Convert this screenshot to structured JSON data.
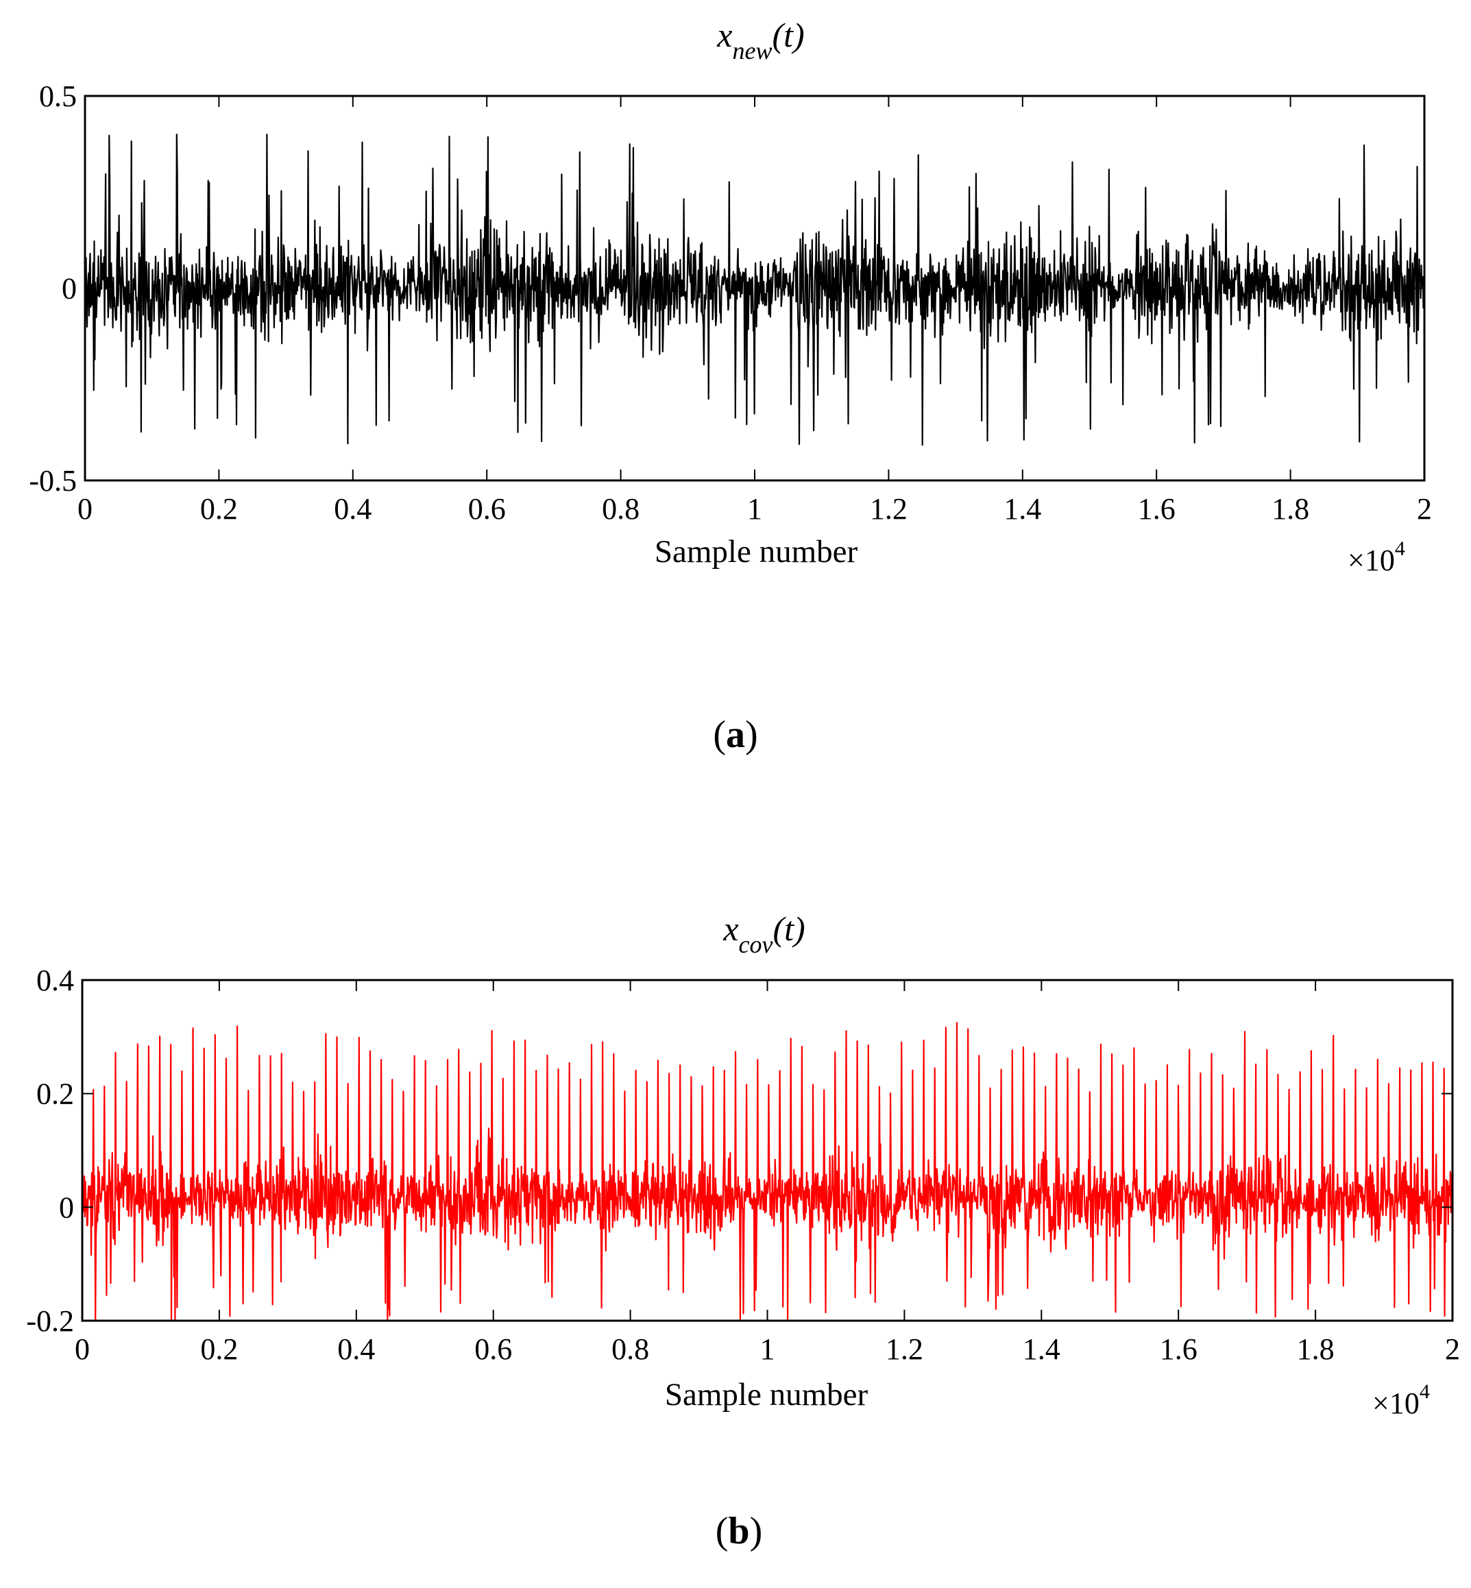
{
  "chart_data": [
    {
      "type": "line",
      "title_base": "x",
      "title_sub": "new",
      "title_tail": "(t)",
      "xlabel": "Sample number",
      "x_multiplier": "×10",
      "x_multiplier_exp": "4",
      "xlim": [
        0,
        20000
      ],
      "ylim": [
        -0.5,
        0.5
      ],
      "xticks": [
        0,
        0.2,
        0.4,
        0.6,
        0.8,
        1,
        1.2,
        1.4,
        1.6,
        1.8,
        2
      ],
      "xtick_labels": [
        "0",
        "0.2",
        "0.4",
        "0.6",
        "0.8",
        "1",
        "1.2",
        "1.4",
        "1.6",
        "1.8",
        "2"
      ],
      "yticks": [
        -0.5,
        0,
        0.5
      ],
      "ytick_labels": [
        "-0.5",
        "0",
        "0.5"
      ],
      "color": "#000000",
      "panel_label_open": "(",
      "panel_label_letter": "a",
      "panel_label_close": ")",
      "series": [
        {
          "description_values": "dense noise signal, 20000 samples; envelope approx. typical ±0.2, peaks up to +0.40 and down to -0.43",
          "typical_envelope": 0.2,
          "max": 0.4,
          "min": -0.43
        }
      ]
    },
    {
      "type": "line",
      "title_base": "x",
      "title_sub": "cov",
      "title_tail": "(t)",
      "xlabel": "Sample number",
      "x_multiplier": "×10",
      "x_multiplier_exp": "4",
      "xlim": [
        0,
        20000
      ],
      "ylim": [
        -0.2,
        0.4
      ],
      "xticks": [
        0,
        0.2,
        0.4,
        0.6,
        0.8,
        1,
        1.2,
        1.4,
        1.6,
        1.8,
        2
      ],
      "xtick_labels": [
        "0",
        "0.2",
        "0.4",
        "0.6",
        "0.8",
        "1",
        "1.2",
        "1.4",
        "1.6",
        "1.8",
        "2"
      ],
      "yticks": [
        -0.2,
        0,
        0.2,
        0.4
      ],
      "ytick_labels": [
        "-0.2",
        "0",
        "0.2",
        "0.4"
      ],
      "color": "#ff0000",
      "panel_label_open": "(",
      "panel_label_letter": "b",
      "panel_label_close": ")",
      "series": [
        {
          "description_values": "noise with periodic positive impulses, 20000 samples; baseline envelope approx. ±0.1, impulse peaks 0.2–0.33, troughs down to -0.2",
          "typical_envelope": 0.1,
          "impulse_peak_min": 0.2,
          "max": 0.33,
          "min": -0.2
        }
      ]
    }
  ]
}
